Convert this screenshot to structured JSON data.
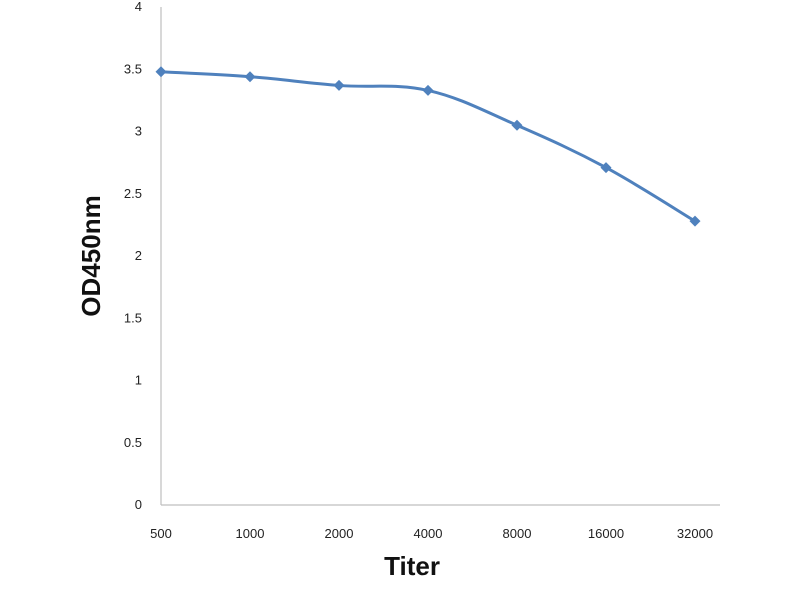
{
  "chart_data": {
    "type": "line",
    "title": "",
    "xlabel": "Titer",
    "ylabel": "OD450nm",
    "categories": [
      "500",
      "1000",
      "2000",
      "4000",
      "8000",
      "16000",
      "32000"
    ],
    "series": [
      {
        "values": [
          3.48,
          3.44,
          3.37,
          3.33,
          3.05,
          2.71,
          2.28
        ]
      }
    ],
    "ylim": [
      0,
      4
    ],
    "yticks": [
      "0",
      "0.5",
      "1",
      "1.5",
      "2",
      "2.5",
      "3",
      "3.5",
      "4"
    ],
    "grid": false,
    "legend": "none",
    "colors": {
      "line": "#4f81bd",
      "axis": "#bfbfbf"
    }
  }
}
